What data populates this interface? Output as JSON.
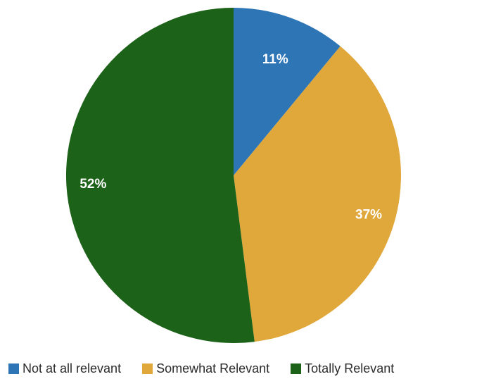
{
  "chart_data": {
    "type": "pie",
    "title": "",
    "slices": [
      {
        "name": "Not at all relevant",
        "value": 11,
        "label": "11%",
        "color": "#2e75b6"
      },
      {
        "name": "Somewhat Relevant",
        "value": 37,
        "label": "37%",
        "color": "#e0a83a"
      },
      {
        "name": "Totally Relevant",
        "value": 52,
        "label": "52%",
        "color": "#1d6219"
      }
    ],
    "start_angle_deg": 0,
    "direction": "clockwise",
    "legend_position": "bottom"
  }
}
